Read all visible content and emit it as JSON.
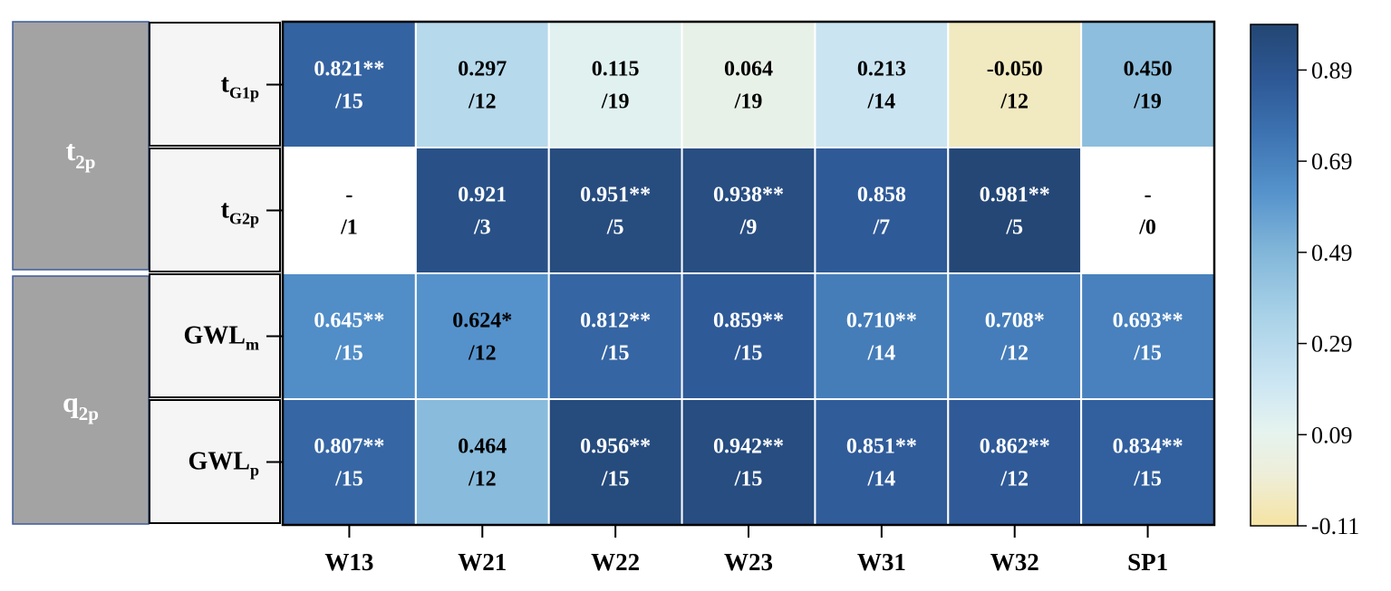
{
  "chart_data": {
    "type": "heatmap",
    "columns": [
      "W13",
      "W21",
      "W22",
      "W23",
      "W31",
      "W32",
      "SP1"
    ],
    "groups": [
      {
        "label": "t",
        "sub": "2p"
      },
      {
        "label": "q",
        "sub": "2p"
      }
    ],
    "rows": [
      {
        "label": "t",
        "sub": "G1p"
      },
      {
        "label": "t",
        "sub": "G2p"
      },
      {
        "label": "GWL",
        "sub": "m"
      },
      {
        "label": "GWL",
        "sub": "p"
      }
    ],
    "values": [
      [
        0.821,
        0.297,
        0.115,
        0.064,
        0.213,
        -0.05,
        0.45
      ],
      [
        null,
        0.921,
        0.951,
        0.938,
        0.858,
        0.981,
        null
      ],
      [
        0.645,
        0.624,
        0.812,
        0.859,
        0.71,
        0.708,
        0.693
      ],
      [
        0.807,
        0.464,
        0.956,
        0.942,
        0.851,
        0.862,
        0.834
      ]
    ],
    "cell_text": [
      [
        "0.821**",
        "0.297",
        "0.115",
        "0.064",
        "0.213",
        "-0.050",
        "0.450"
      ],
      [
        "-",
        "0.921",
        "0.951**",
        "0.938**",
        "0.858",
        "0.981**",
        "-"
      ],
      [
        "0.645**",
        "0.624*",
        "0.812**",
        "0.859**",
        "0.710**",
        "0.708*",
        "0.693**"
      ],
      [
        "0.807**",
        "0.464",
        "0.956**",
        "0.942**",
        "0.851**",
        "0.862**",
        "0.834**"
      ]
    ],
    "cell_counts": [
      [
        "/15",
        "/12",
        "/19",
        "/19",
        "/14",
        "/12",
        "/19"
      ],
      [
        "/1",
        "/3",
        "/5",
        "/9",
        "/7",
        "/5",
        "/0"
      ],
      [
        "/15",
        "/12",
        "/15",
        "/15",
        "/14",
        "/12",
        "/15"
      ],
      [
        "/15",
        "/12",
        "/15",
        "/15",
        "/14",
        "/12",
        "/15"
      ]
    ],
    "colorbar": {
      "range": [
        -0.11,
        0.99
      ],
      "ticks": [
        "0.89",
        "0.69",
        "0.49",
        "0.29",
        "0.09",
        "-0.11"
      ],
      "tick_values": [
        0.89,
        0.69,
        0.49,
        0.29,
        0.09,
        -0.11
      ],
      "colormap": [
        "#f5e3a3",
        "#eeeed8",
        "#e5f3ef",
        "#cde6f3",
        "#a9d2e8",
        "#7fb4d8",
        "#5693cc",
        "#3d73b1",
        "#2f5a98",
        "#234673"
      ],
      "colormap_stops": [
        -0.11,
        0.0,
        0.1,
        0.2,
        0.35,
        0.5,
        0.62,
        0.75,
        0.86,
        0.99
      ]
    },
    "grid": true
  },
  "colors": {
    "group_box": "#a3a3a3",
    "group_border": "#3b5b9c",
    "row_label_box": "#f5f5f5",
    "empty_cell": "#ffffff",
    "dark_text": "#000000",
    "light_text": "#ffffff"
  }
}
